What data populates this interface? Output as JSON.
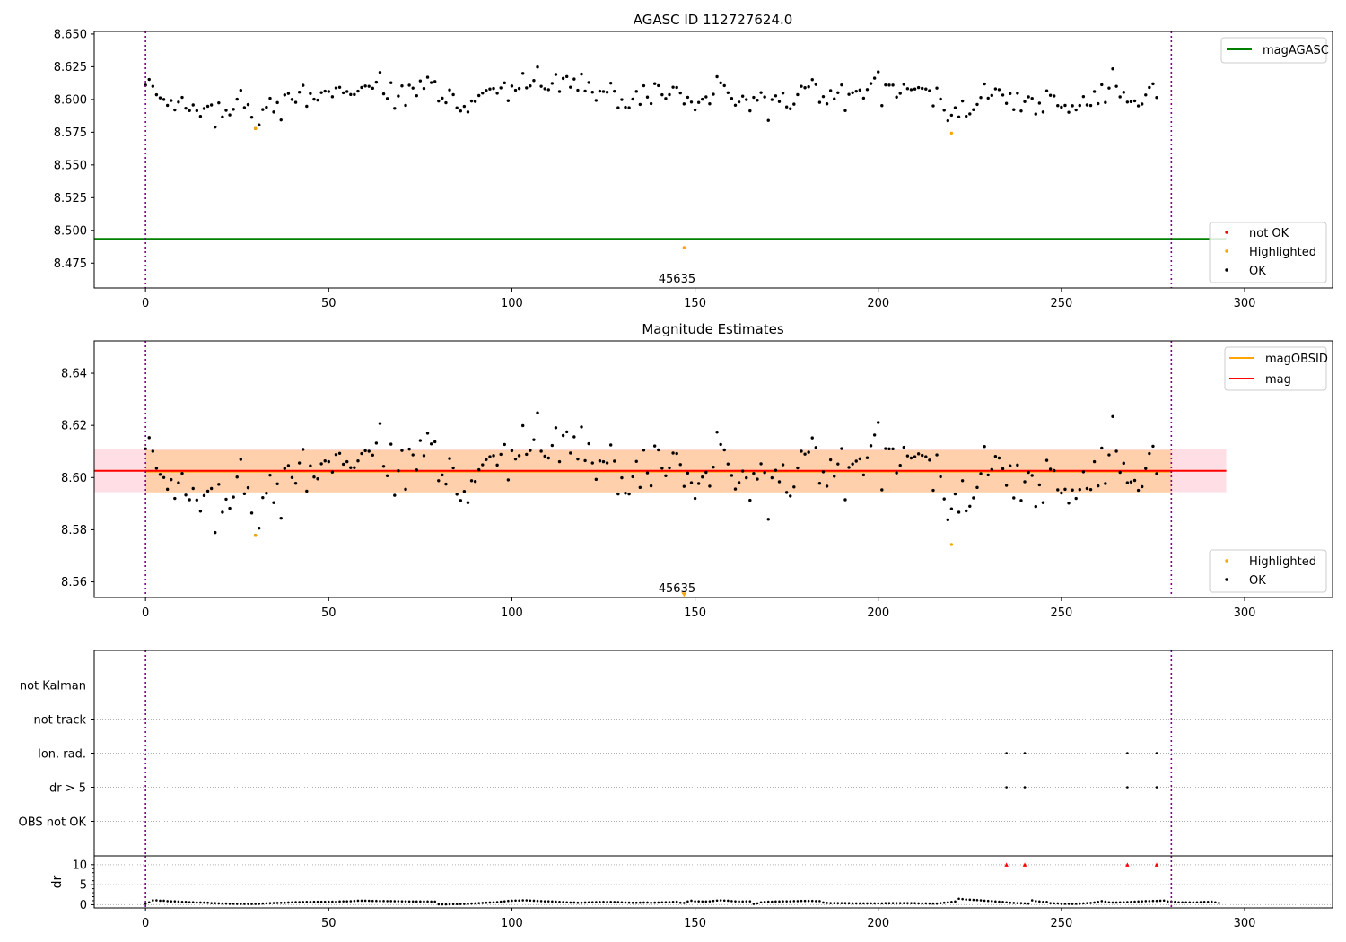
{
  "chart_data": [
    {
      "type": "scatter",
      "title": "AGASC ID 112727624.0",
      "xlim": [
        -14,
        324
      ],
      "ylim": [
        8.456,
        8.652
      ],
      "xticks": [
        0,
        50,
        100,
        150,
        200,
        250,
        300
      ],
      "xtick_labels": [
        "0",
        "50",
        "100",
        "150",
        "200",
        "250",
        "300"
      ],
      "yticks": [
        8.475,
        8.5,
        8.525,
        8.55,
        8.575,
        8.6,
        8.625,
        8.65
      ],
      "ytick_labels": [
        "8.475",
        "8.500",
        "8.525",
        "8.550",
        "8.575",
        "8.600",
        "8.625",
        "8.650"
      ],
      "obs_boundaries": [
        0,
        280
      ],
      "obsid_annotation": {
        "text": "45635",
        "x": 140,
        "y": 8.46
      },
      "mag_agasc": {
        "value": 8.4935,
        "x_range": [
          -14,
          295
        ],
        "label": "magAGASC"
      },
      "ok_points": {
        "x_start": 0,
        "x_step": 1,
        "values": [
          8.611,
          8.6153,
          8.6101,
          8.6036,
          8.6012,
          8.6,
          8.5955,
          8.5992,
          8.592,
          8.598,
          8.6016,
          8.5933,
          8.5915,
          8.5958,
          8.5914,
          8.5871,
          8.5931,
          8.5948,
          8.5958,
          8.5789,
          8.5974,
          8.5867,
          8.5917,
          8.5882,
          8.5925,
          8.6002,
          8.607,
          8.5938,
          8.5961,
          8.5864,
          8.5778,
          8.5806,
          8.5923,
          8.594,
          8.6009,
          8.5904,
          8.5976,
          8.5844,
          8.6035,
          8.6046,
          8.6,
          8.5978,
          8.6056,
          8.6108,
          8.5948,
          8.6045,
          8.6002,
          8.5995,
          8.6053,
          8.6064,
          8.6061,
          8.6021,
          8.6088,
          8.6093,
          8.6051,
          8.6061,
          8.6038,
          8.6038,
          8.6064,
          8.6092,
          8.6103,
          8.6101,
          8.6086,
          8.6132,
          8.6207,
          8.6043,
          8.6007,
          8.6128,
          8.5932,
          8.6026,
          8.6104,
          8.5955,
          8.6109,
          8.6087,
          8.6029,
          8.6142,
          8.6084,
          8.617,
          8.6129,
          8.6137,
          8.5988,
          8.601,
          8.5975,
          8.6073,
          8.6037,
          8.5936,
          8.5912,
          8.5947,
          8.5904,
          8.5988,
          8.5985,
          8.603,
          8.6049,
          8.6069,
          8.608,
          8.6084,
          8.6048,
          8.6089,
          8.6127,
          8.5991,
          8.6103,
          8.6071,
          8.6084,
          8.6199,
          8.6089,
          8.6104,
          8.6145,
          8.6248,
          8.6101,
          8.6082,
          8.6075,
          8.6123,
          8.6191,
          8.6061,
          8.6161,
          8.6175,
          8.6094,
          8.6156,
          8.6071,
          8.6194,
          8.6065,
          8.613,
          8.6056,
          8.5993,
          8.6064,
          8.6061,
          8.6056,
          8.6125,
          8.6063,
          8.5937,
          8.5999,
          8.594,
          8.5937,
          8.6003,
          8.6062,
          8.5962,
          8.6105,
          8.6018,
          8.5968,
          8.6121,
          8.6106,
          8.6036,
          8.6007,
          8.6037,
          8.6094,
          8.6092,
          8.605,
          8.5966,
          8.6017,
          8.598,
          8.592,
          8.5977,
          8.6002,
          8.602,
          8.5967,
          8.604,
          8.6174,
          8.6127,
          8.6106,
          8.6052,
          8.6008,
          8.5956,
          8.5981,
          8.6025,
          8.5999,
          8.5913,
          8.6016,
          8.5994,
          8.6053,
          8.6019,
          8.584,
          8.5999,
          8.6028,
          8.5984,
          8.6049,
          8.5943,
          8.5929,
          8.5964,
          8.6037,
          8.6101,
          8.609,
          8.6097,
          8.6152,
          8.6115,
          8.5978,
          8.6022,
          8.5967,
          8.6068,
          8.6005,
          8.6052,
          8.6111,
          8.5915,
          8.6039,
          8.6052,
          8.6063,
          8.6072,
          8.601,
          8.6076,
          8.6122,
          8.6163,
          8.6211,
          8.5953,
          8.6111,
          8.611,
          8.611,
          8.6018,
          8.6047,
          8.6116,
          8.6083,
          8.6075,
          8.608,
          8.6091,
          8.6085,
          8.608,
          8.6067,
          8.5951,
          8.6087,
          8.6003,
          8.5918,
          8.5838,
          8.588,
          8.5937,
          8.5867,
          8.5988,
          8.5872,
          8.589,
          8.5922,
          8.5962,
          8.6015,
          8.6119,
          8.601,
          8.6031,
          8.6081,
          8.6075,
          8.6034,
          8.597,
          8.6045,
          8.5922,
          8.6048,
          8.5912,
          8.5984,
          8.602,
          8.6008,
          8.5889,
          8.5972,
          8.5904,
          8.6066,
          8.6032,
          8.6027,
          8.5953,
          8.5941,
          8.5955,
          8.5902,
          8.5952,
          8.592,
          8.5954,
          8.6022,
          8.5958,
          8.5954,
          8.6061,
          8.5968,
          8.6113,
          8.5977,
          8.6087,
          8.6234,
          8.6101,
          8.602,
          8.6055,
          8.598,
          8.5983,
          8.5989,
          8.5951,
          8.5965,
          8.6035,
          8.6092,
          8.612,
          8.6015
        ]
      },
      "highlighted_points": [
        {
          "x": 30,
          "y": 8.5778
        },
        {
          "x": 147,
          "y": 8.4869
        },
        {
          "x": 220,
          "y": 8.5743
        }
      ],
      "not_ok_points": [],
      "legend_upper": {
        "position": "upper-right",
        "entries": [
          "magAGASC"
        ]
      },
      "legend_lower": {
        "position": "lower-right",
        "entries": [
          "not OK",
          "Highlighted",
          "OK"
        ]
      }
    },
    {
      "type": "scatter",
      "title": "Magnitude Estimates",
      "xlim": [
        -14,
        324
      ],
      "ylim": [
        8.554,
        8.6524
      ],
      "xticks": [
        0,
        50,
        100,
        150,
        200,
        250,
        300
      ],
      "xtick_labels": [
        "0",
        "50",
        "100",
        "150",
        "200",
        "250",
        "300"
      ],
      "yticks": [
        8.56,
        8.58,
        8.6,
        8.62,
        8.64
      ],
      "ytick_labels": [
        "8.56",
        "8.58",
        "8.60",
        "8.62",
        "8.64"
      ],
      "obs_boundaries": [
        0,
        280
      ],
      "obsid_annotation": {
        "text": "45635",
        "x": 140,
        "y": 8.556
      },
      "mag": {
        "value": 8.6026,
        "band": [
          8.5944,
          8.6108
        ],
        "x_range": [
          -14,
          295
        ],
        "label": "mag"
      },
      "mag_obsid": {
        "value": 8.6023,
        "band": [
          8.5941,
          8.6105
        ],
        "x_range": [
          0,
          280
        ],
        "label": "magOBSID"
      },
      "highlighted_points": [
        {
          "x": 30,
          "y": 8.5778
        },
        {
          "x": 220,
          "y": 8.5743
        }
      ],
      "offscale_marker": {
        "x": 147,
        "y": 8.5553,
        "label": "below range"
      },
      "legend_upper": {
        "position": "upper-right",
        "entries": [
          "magOBSID",
          "mag"
        ]
      },
      "legend_lower": {
        "position": "lower-right",
        "entries": [
          "Highlighted",
          "OK"
        ]
      }
    },
    {
      "type": "scatter",
      "title": "",
      "xlim": [
        -14,
        324
      ],
      "obs_boundaries": [
        0,
        280
      ],
      "flag_categories": [
        "not Kalman",
        "not track",
        "Ion. rad.",
        "dr > 5",
        "OBS not OK"
      ],
      "flag_points": [
        {
          "category": "Ion. rad.",
          "x": [
            235,
            240,
            268,
            276
          ]
        },
        {
          "category": "dr > 5",
          "x": [
            235,
            240,
            268,
            276
          ]
        }
      ]
    },
    {
      "type": "scatter",
      "title": "",
      "ylabel": "dr",
      "xlim": [
        -14,
        324
      ],
      "ylim": [
        -0.8,
        12.2
      ],
      "xticks": [
        0,
        50,
        100,
        150,
        200,
        250,
        300
      ],
      "xtick_labels": [
        "0",
        "50",
        "100",
        "150",
        "200",
        "250",
        "300"
      ],
      "yticks": [
        0,
        5,
        10
      ],
      "ytick_labels": [
        "0",
        "5",
        "10"
      ],
      "obs_boundaries": [
        0,
        280
      ],
      "dr_points": {
        "x_start": 0,
        "x_step": 1,
        "values": [
          0.22,
          0.6,
          1.08,
          1.1,
          1.0,
          1.0,
          0.9,
          0.85,
          0.85,
          0.78,
          0.7,
          0.7,
          0.62,
          0.62,
          0.55,
          0.55,
          0.52,
          0.5,
          0.4,
          0.4,
          0.35,
          0.32,
          0.3,
          0.25,
          0.25,
          0.22,
          0.22,
          0.22,
          0.2,
          0.2,
          0.22,
          0.25,
          0.3,
          0.35,
          0.4,
          0.42,
          0.45,
          0.48,
          0.5,
          0.55,
          0.6,
          0.65,
          0.65,
          0.68,
          0.7,
          0.7,
          0.72,
          0.72,
          0.72,
          0.72,
          0.72,
          0.75,
          0.75,
          0.8,
          0.85,
          0.85,
          0.88,
          0.95,
          1.0,
          1.0,
          1.0,
          0.98,
          0.95,
          0.95,
          0.92,
          0.92,
          0.9,
          0.9,
          0.88,
          0.88,
          0.85,
          0.85,
          0.82,
          0.82,
          0.8,
          0.8,
          0.8,
          0.8,
          0.78,
          0.78,
          0.12,
          0.1,
          0.1,
          0.12,
          0.15,
          0.15,
          0.18,
          0.2,
          0.25,
          0.3,
          0.35,
          0.4,
          0.45,
          0.5,
          0.55,
          0.6,
          0.65,
          0.75,
          0.85,
          0.95,
          1.0,
          1.05,
          1.05,
          1.1,
          1.1,
          1.05,
          1.0,
          0.95,
          0.9,
          0.85,
          0.85,
          0.8,
          0.75,
          0.7,
          0.65,
          0.6,
          0.55,
          0.55,
          0.5,
          0.5,
          0.55,
          0.6,
          0.62,
          0.65,
          0.68,
          0.7,
          0.7,
          0.7,
          0.68,
          0.65,
          0.6,
          0.55,
          0.52,
          0.5,
          0.5,
          0.52,
          0.55,
          0.55,
          0.5,
          0.52,
          0.55,
          0.6,
          0.62,
          0.65,
          0.7,
          0.75,
          0.5,
          0.45,
          0.8,
          1.0,
          0.85,
          0.85,
          0.8,
          0.8,
          0.85,
          0.95,
          1.05,
          1.1,
          1.05,
          1.0,
          0.9,
          0.85,
          0.8,
          0.8,
          0.85,
          0.85,
          0.2,
          0.35,
          0.6,
          0.7,
          0.75,
          0.75,
          0.8,
          0.8,
          0.85,
          0.85,
          0.85,
          0.9,
          0.9,
          0.95,
          0.95,
          0.95,
          0.95,
          0.9,
          0.9,
          0.55,
          0.45,
          0.4,
          0.4,
          0.4,
          0.4,
          0.38,
          0.38,
          0.35,
          0.35,
          0.35,
          0.35,
          0.35,
          0.35,
          0.35,
          0.35,
          0.35,
          0.38,
          0.38,
          0.4,
          0.4,
          0.4,
          0.4,
          0.4,
          0.4,
          0.38,
          0.35,
          0.35,
          0.35,
          0.32,
          0.3,
          0.3,
          0.4,
          0.5,
          0.6,
          0.7,
          0.8,
          1.5,
          1.4,
          1.3,
          1.25,
          1.2,
          1.15,
          1.1,
          1.0,
          0.95,
          0.9,
          0.8,
          0.75,
          0.7,
          0.6,
          0.5,
          0.45,
          0.4,
          0.4,
          0.35,
          0.3,
          1.1,
          0.9,
          0.8,
          0.7,
          0.7,
          0.4,
          0.35,
          0.35,
          0.25,
          0.25,
          0.25,
          0.2,
          0.25,
          0.3,
          0.35,
          0.4,
          0.45,
          0.55,
          0.7,
          0.9,
          0.75,
          0.6,
          0.55,
          0.55,
          0.6,
          0.6,
          0.65,
          0.7,
          0.75,
          0.8,
          0.85,
          0.9,
          0.9,
          0.95,
          0.95,
          1.0,
          1.05,
          0.8,
          0.8,
          0.7,
          0.6,
          0.6,
          0.6,
          0.6,
          0.6,
          0.6,
          0.65,
          0.7,
          0.7,
          0.75,
          0.6,
          0.45
        ]
      },
      "dr_over_5": {
        "x": [
          235,
          240,
          268,
          276
        ],
        "value": 10
      }
    }
  ]
}
